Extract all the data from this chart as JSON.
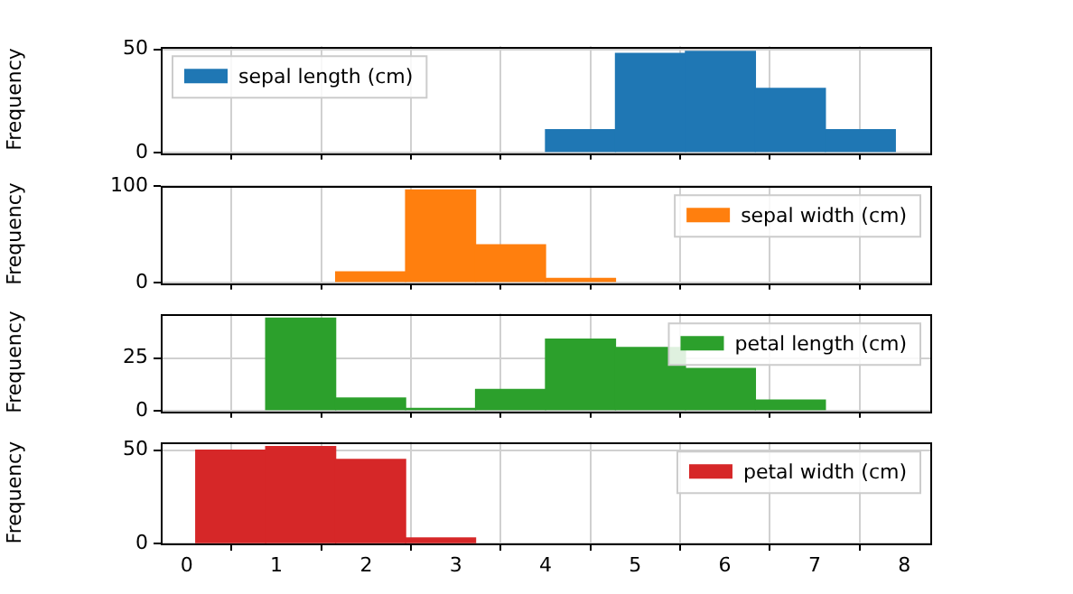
{
  "chart_data": [
    {
      "type": "histogram",
      "ylabel": "Frequency",
      "bins": [
        0.1,
        0.88,
        1.66,
        2.44,
        3.22,
        4.0,
        4.78,
        5.56,
        6.34,
        7.12,
        7.9
      ],
      "series": [
        {
          "name": "sepal length (cm)",
          "color": "#1f77b4",
          "values": [
            0,
            0,
            0,
            0,
            0,
            11,
            48,
            49,
            31,
            11
          ]
        }
      ],
      "xlim": [
        -0.29,
        8.29
      ],
      "xticks": [
        0,
        1,
        2,
        3,
        4,
        5,
        6,
        7,
        8
      ],
      "ylim": [
        0,
        51.45
      ],
      "yticks": [
        0,
        50
      ],
      "grid": true,
      "legend": "top left",
      "tick_labels": "y"
    },
    {
      "type": "histogram",
      "ylabel": "Frequency",
      "bins": [
        0.1,
        0.88,
        1.66,
        2.44,
        3.22,
        4.0,
        4.78,
        5.56,
        6.34,
        7.12,
        7.9
      ],
      "series": [
        {
          "name": "sepal width (cm)",
          "color": "#ff7f0e",
          "values": [
            0,
            0,
            11,
            96,
            39,
            4,
            0,
            0,
            0,
            0
          ]
        }
      ],
      "xlim": [
        -0.29,
        8.29
      ],
      "xticks": [
        0,
        1,
        2,
        3,
        4,
        5,
        6,
        7,
        8
      ],
      "ylim": [
        0,
        100.8
      ],
      "yticks": [
        0,
        100
      ],
      "grid": true,
      "legend": "top right",
      "tick_labels": "y"
    },
    {
      "type": "histogram",
      "ylabel": "Frequency",
      "bins": [
        0.1,
        0.88,
        1.66,
        2.44,
        3.22,
        4.0,
        4.78,
        5.56,
        6.34,
        7.12,
        7.9
      ],
      "series": [
        {
          "name": "petal length (cm)",
          "color": "#2ca02c",
          "values": [
            0,
            44,
            6,
            1,
            10,
            34,
            30,
            20,
            5,
            0
          ]
        }
      ],
      "xlim": [
        -0.29,
        8.29
      ],
      "xticks": [
        0,
        1,
        2,
        3,
        4,
        5,
        6,
        7,
        8
      ],
      "ylim": [
        0,
        46.2
      ],
      "yticks": [
        0,
        25
      ],
      "grid": true,
      "legend": "top right",
      "tick_labels": "y"
    },
    {
      "type": "histogram",
      "ylabel": "Frequency",
      "bins": [
        0.1,
        0.88,
        1.66,
        2.44,
        3.22,
        4.0,
        4.78,
        5.56,
        6.34,
        7.12,
        7.9
      ],
      "series": [
        {
          "name": "petal width (cm)",
          "color": "#d62728",
          "values": [
            50,
            52,
            45,
            3,
            0,
            0,
            0,
            0,
            0,
            0
          ]
        }
      ],
      "xlim": [
        -0.29,
        8.29
      ],
      "xticks": [
        0,
        1,
        2,
        3,
        4,
        5,
        6,
        7,
        8
      ],
      "ylim": [
        0,
        54.6
      ],
      "yticks": [
        0,
        50
      ],
      "grid": true,
      "legend": "top right"
    }
  ]
}
